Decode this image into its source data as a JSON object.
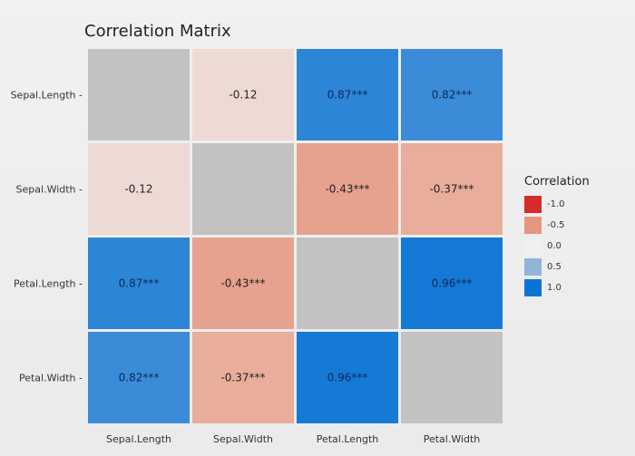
{
  "chart_data": {
    "type": "heatmap",
    "title": "Correlation Matrix",
    "xlabel": "",
    "ylabel": "",
    "variables": [
      "Sepal.Length",
      "Sepal.Width",
      "Petal.Length",
      "Petal.Width"
    ],
    "matrix": [
      [
        null,
        -0.12,
        0.87,
        0.82
      ],
      [
        -0.12,
        null,
        -0.43,
        -0.37
      ],
      [
        0.87,
        -0.43,
        null,
        0.96
      ],
      [
        0.82,
        -0.37,
        0.96,
        null
      ]
    ],
    "labels": [
      [
        "",
        "-0.12",
        "0.87***",
        "0.82***"
      ],
      [
        "-0.12",
        "",
        "-0.43***",
        "-0.37***"
      ],
      [
        "0.87***",
        "-0.43***",
        "",
        "0.96***"
      ],
      [
        "0.82***",
        "-0.37***",
        "0.96***",
        ""
      ]
    ],
    "diagonal_color": "#c2c2c2",
    "legend": {
      "title": "Correlation",
      "placement": "right",
      "entries": [
        {
          "label": "-1.0",
          "color": "#d62b2b"
        },
        {
          "label": "-0.5",
          "color": "#e6957f"
        },
        {
          "label": "0.0",
          "color": "#f0f0f0"
        },
        {
          "label": "0.5",
          "color": "#92b4db"
        },
        {
          "label": "1.0",
          "color": "#0a74d6"
        }
      ]
    }
  }
}
